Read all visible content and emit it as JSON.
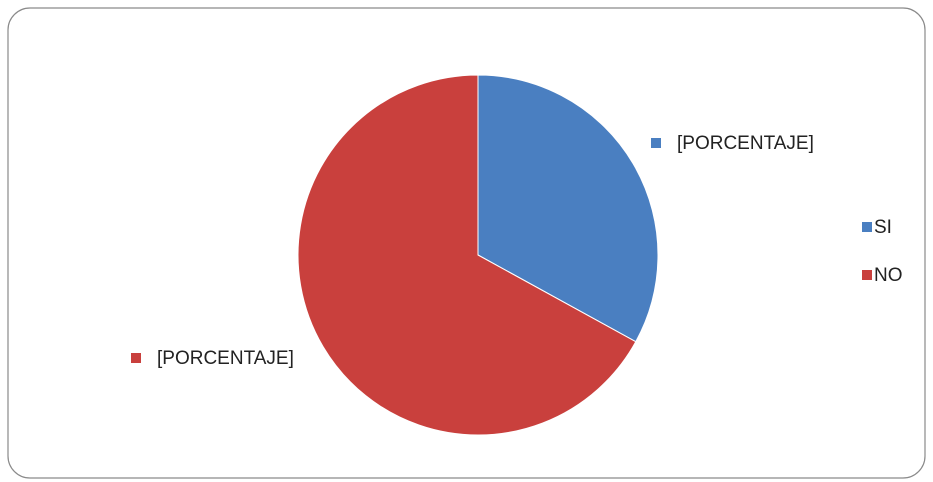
{
  "chart_data": {
    "type": "pie",
    "categories": [
      "SI",
      "NO"
    ],
    "values": [
      33,
      67
    ],
    "value_labels": [
      "[PORCENTAJE]",
      "[PORCENTAJE]"
    ],
    "colors": [
      "#4a7fc1",
      "#c9403d"
    ],
    "legend": "right"
  }
}
